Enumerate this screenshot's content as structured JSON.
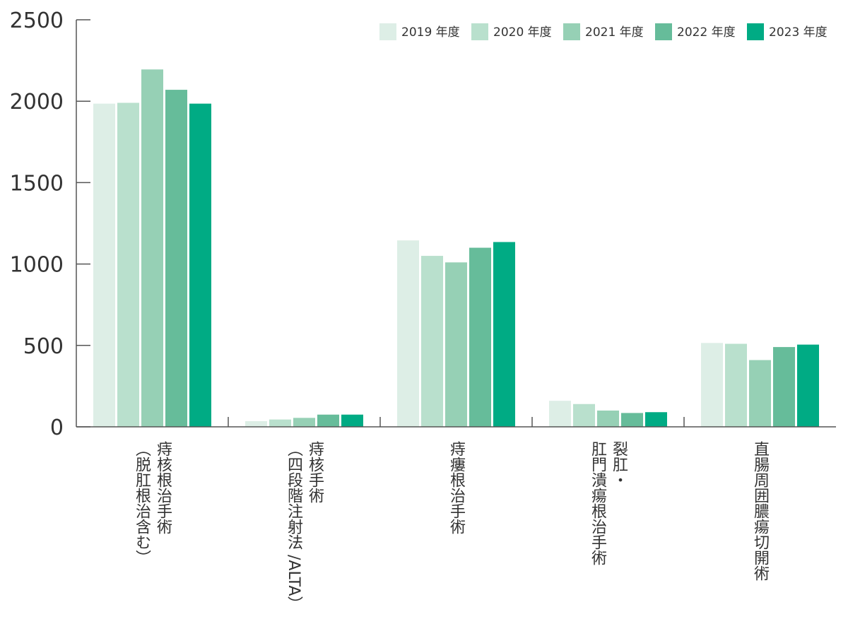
{
  "chart_data": {
    "type": "bar",
    "title": "",
    "xlabel": "",
    "ylabel": "",
    "ylim": [
      0,
      2500
    ],
    "yticks": [
      0,
      500,
      1000,
      1500,
      2000,
      2500
    ],
    "legend_position": "top-right",
    "grid": false,
    "categories": [
      {
        "lines": [
          "痔核根治手術",
          "（脱肛根治含む）"
        ]
      },
      {
        "lines": [
          "痔核手術",
          "（四段階注射法 /ALTA）"
        ]
      },
      {
        "lines": [
          "痔瘻根治手術"
        ]
      },
      {
        "lines": [
          "裂肛・",
          "肛門潰瘍根治手術"
        ]
      },
      {
        "lines": [
          "直腸周囲膿瘍切開術"
        ]
      }
    ],
    "series": [
      {
        "name": "2019 年度",
        "color": "#ddeee6",
        "values": [
          1985,
          35,
          1145,
          160,
          515
        ]
      },
      {
        "name": "2020 年度",
        "color": "#b9e0cd",
        "values": [
          1990,
          45,
          1050,
          140,
          510
        ]
      },
      {
        "name": "2021 年度",
        "color": "#96d0b5",
        "values": [
          2195,
          55,
          1010,
          100,
          410
        ]
      },
      {
        "name": "2022 年度",
        "color": "#66bc9a",
        "values": [
          2070,
          75,
          1100,
          85,
          490
        ]
      },
      {
        "name": "2023 年度",
        "color": "#00ab84",
        "values": [
          1985,
          75,
          1135,
          90,
          505
        ]
      }
    ]
  }
}
